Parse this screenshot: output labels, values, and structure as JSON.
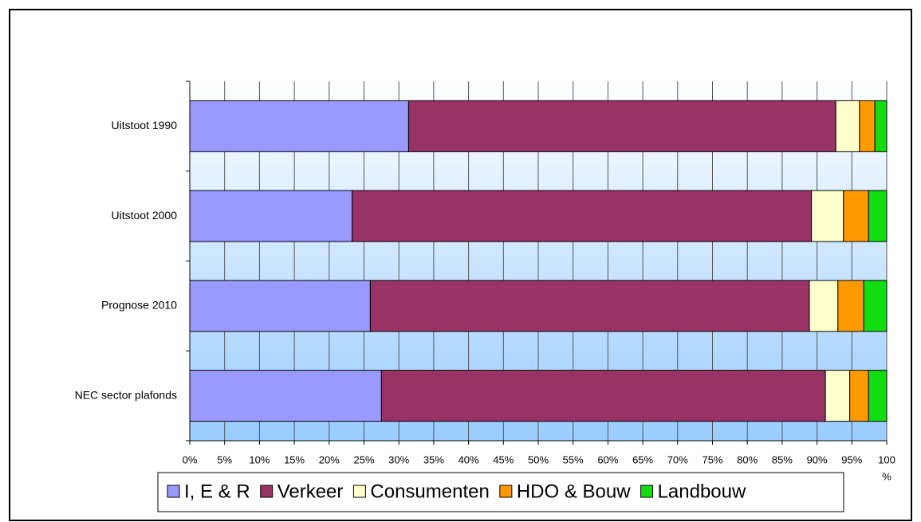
{
  "chart_data": {
    "type": "stacked_bar_horizontal",
    "categories": [
      "Uitstoot 1990",
      "Uitstoot 2000",
      "Prognose 2010",
      "NEC sector plafonds"
    ],
    "series": [
      {
        "name": "I, E & R",
        "color": "#9999ff",
        "values": [
          31.4,
          23.3,
          25.9,
          27.5
        ]
      },
      {
        "name": "Verkeer",
        "color": "#993366",
        "values": [
          61.3,
          65.9,
          63.0,
          63.7
        ]
      },
      {
        "name": "Consumenten",
        "color": "#ffffcc",
        "values": [
          3.4,
          4.6,
          4.1,
          3.5
        ]
      },
      {
        "name": "HDO & Bouw",
        "color": "#ff9900",
        "values": [
          2.2,
          3.6,
          3.7,
          2.7
        ]
      },
      {
        "name": "Landbouw",
        "color": "#11dd11",
        "values": [
          1.7,
          2.6,
          3.3,
          2.6
        ]
      }
    ],
    "xlabel": "%",
    "xlim": [
      0,
      100
    ],
    "xticks": [
      {
        "value": 0,
        "label": "0%"
      },
      {
        "value": 5,
        "label": "5%"
      },
      {
        "value": 10,
        "label": "10%"
      },
      {
        "value": 15,
        "label": "15%"
      },
      {
        "value": 20,
        "label": "20%"
      },
      {
        "value": 25,
        "label": "25%"
      },
      {
        "value": 30,
        "label": "30%"
      },
      {
        "value": 35,
        "label": "35%"
      },
      {
        "value": 40,
        "label": "40%"
      },
      {
        "value": 45,
        "label": "45%"
      },
      {
        "value": 50,
        "label": "50%"
      },
      {
        "value": 55,
        "label": "55%"
      },
      {
        "value": 60,
        "label": "60%"
      },
      {
        "value": 65,
        "label": "65%"
      },
      {
        "value": 70,
        "label": "70%"
      },
      {
        "value": 75,
        "label": "75%"
      },
      {
        "value": 80,
        "label": "80%"
      },
      {
        "value": 85,
        "label": "85%"
      },
      {
        "value": 90,
        "label": "90%"
      },
      {
        "value": 95,
        "label": "95%"
      },
      {
        "value": 100,
        "label": "100"
      }
    ],
    "grid": true,
    "legend": "bottom"
  }
}
